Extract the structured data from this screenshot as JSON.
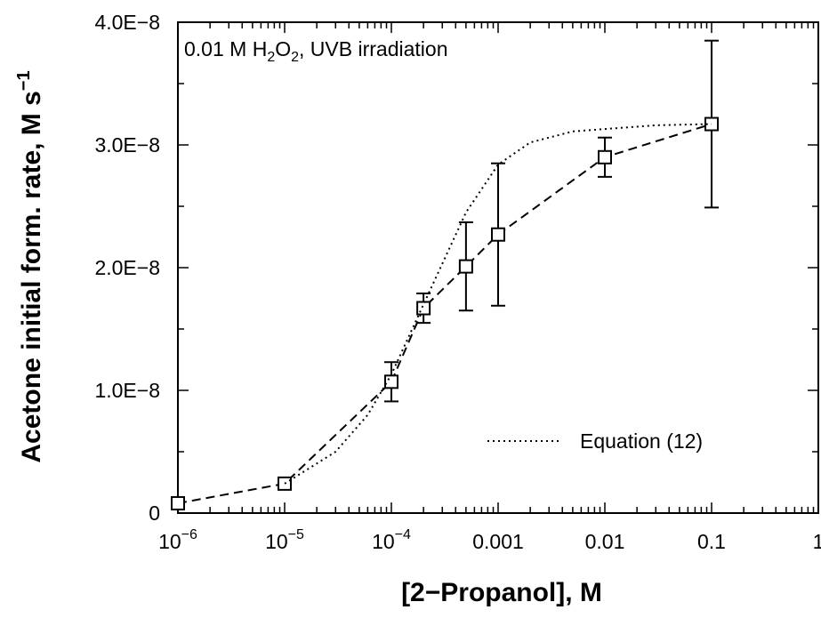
{
  "chart_data": {
    "type": "scatter",
    "annotation": {
      "prefix": "0.01 M H",
      "sub1": "2",
      "mid": "O",
      "sub2": "2",
      "suffix": ", UVB irradiation"
    },
    "xlabel": "[2−Propanol], M",
    "ylabel": {
      "main": "Acetone initial form. rate, M s",
      "sup": "−1"
    },
    "x_scale": "log",
    "xlim": [
      1e-06,
      1
    ],
    "ylim": [
      0,
      4e-08
    ],
    "x_ticks": [
      {
        "value": 1e-06,
        "base": "10",
        "exp": "−6"
      },
      {
        "value": 1e-05,
        "base": "10",
        "exp": "−5"
      },
      {
        "value": 0.0001,
        "base": "10",
        "exp": "−4"
      },
      {
        "value": 0.001,
        "label": "0.001"
      },
      {
        "value": 0.01,
        "label": "0.01"
      },
      {
        "value": 0.1,
        "label": "0.1"
      },
      {
        "value": 1,
        "label": "1"
      }
    ],
    "y_ticks": [
      {
        "value": 0,
        "label": "0"
      },
      {
        "value": 1e-08,
        "label": "1.0E−8"
      },
      {
        "value": 2e-08,
        "label": "2.0E−8"
      },
      {
        "value": 3e-08,
        "label": "3.0E−8"
      },
      {
        "value": 4e-08,
        "label": "4.0E−8"
      }
    ],
    "series": [
      {
        "marker": "open-square",
        "line": "dashed",
        "x": [
          1e-06,
          1e-05,
          0.0001,
          0.0002,
          0.0005,
          0.001,
          0.01,
          0.1
        ],
        "y": [
          8e-10,
          2.4e-09,
          1.07e-08,
          1.67e-08,
          2.01e-08,
          2.27e-08,
          2.9e-08,
          3.17e-08
        ],
        "err_low": [
          5e-10,
          2e-10,
          1.6e-09,
          1.2e-09,
          3.6e-09,
          5.8e-09,
          1.6e-09,
          6.8e-09
        ],
        "err_high": [
          3e-10,
          2e-10,
          1.6e-09,
          1.2e-09,
          3.6e-09,
          5.8e-09,
          1.6e-09,
          6.8e-09
        ]
      },
      {
        "name": "Equation (12)",
        "line": "dotted",
        "x": [
          1e-05,
          3e-05,
          6e-05,
          0.0001,
          0.0002,
          0.0005,
          0.001,
          0.002,
          0.005,
          0.01,
          0.03,
          0.1
        ],
        "y": [
          2.4e-09,
          5e-09,
          8e-09,
          1.13e-08,
          1.7e-08,
          2.45e-08,
          2.84e-08,
          3.02e-08,
          3.11e-08,
          3.13e-08,
          3.16e-08,
          3.17e-08
        ]
      }
    ],
    "legend": {
      "position": "bottom-right",
      "entry": "Equation (12)"
    }
  }
}
